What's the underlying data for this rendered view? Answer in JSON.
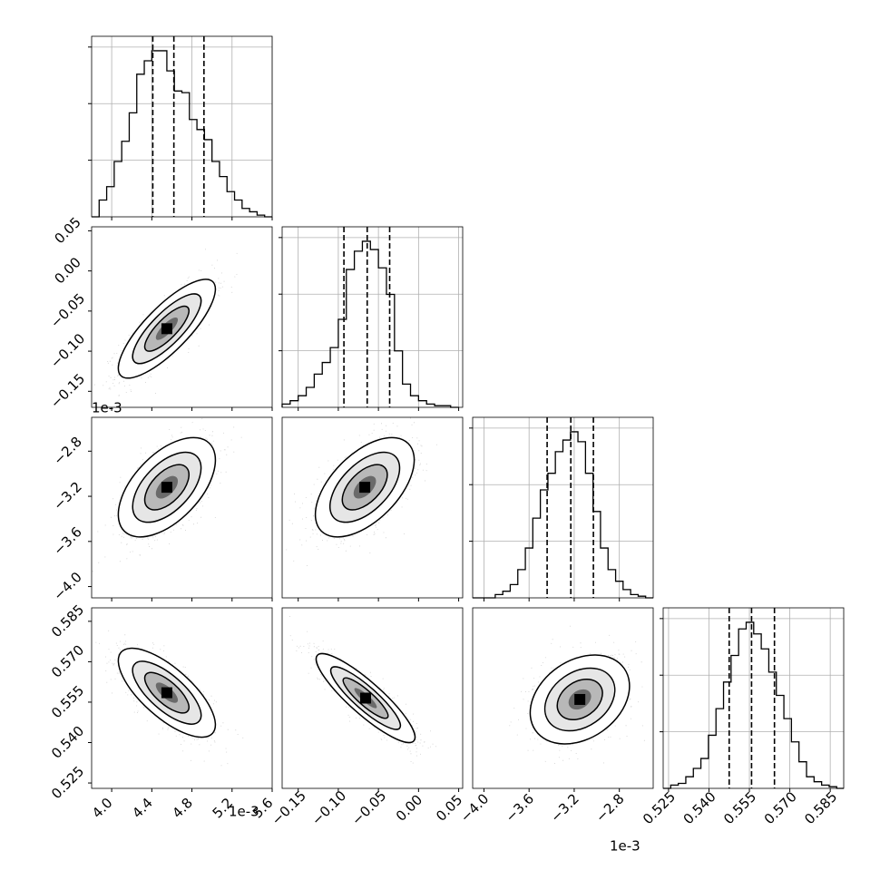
{
  "chart_data": {
    "type": "corner",
    "grid": true,
    "quantile_lines": "dashed",
    "parameters": [
      {
        "range": [
          3.8,
          5.6
        ],
        "ticks": [
          4.0,
          4.4,
          4.8,
          5.2,
          5.6
        ],
        "tick_labels": [
          "4.0",
          "4.4",
          "4.8",
          "5.2",
          "5.6"
        ],
        "offset_label": "1e-3",
        "quantiles": [
          4.41,
          4.62,
          4.92
        ],
        "hist_bins": [
          3.8,
          3.875,
          3.95,
          4.025,
          4.1,
          4.175,
          4.25,
          4.325,
          4.4,
          4.475,
          4.55,
          4.625,
          4.7,
          4.775,
          4.85,
          4.925,
          5.0,
          5.075,
          5.15,
          5.225,
          5.3,
          5.375,
          5.45,
          5.525,
          5.6
        ],
        "hist_counts": [
          0,
          0.1,
          0.18,
          0.33,
          0.45,
          0.62,
          0.85,
          0.93,
          0.99,
          0.99,
          0.87,
          0.75,
          0.74,
          0.58,
          0.52,
          0.46,
          0.33,
          0.24,
          0.15,
          0.1,
          0.05,
          0.03,
          0.01,
          0
        ]
      },
      {
        "range": [
          -0.17,
          0.055
        ],
        "ticks": [
          -0.15,
          -0.1,
          -0.05,
          0.0,
          0.05
        ],
        "tick_labels": [
          "−0.15",
          "−0.10",
          "−0.05",
          "0.00",
          "0.05"
        ],
        "offset_label": "1e-3",
        "quantiles": [
          -0.093,
          -0.064,
          -0.036
        ],
        "hist_bins": [
          -0.17,
          -0.16,
          -0.15,
          -0.14,
          -0.13,
          -0.12,
          -0.11,
          -0.1,
          -0.09,
          -0.08,
          -0.07,
          -0.06,
          -0.05,
          -0.04,
          -0.03,
          -0.02,
          -0.01,
          0.0,
          0.01,
          0.02,
          0.03,
          0.04,
          0.05
        ],
        "hist_counts": [
          0.02,
          0.04,
          0.07,
          0.12,
          0.2,
          0.27,
          0.36,
          0.53,
          0.83,
          0.94,
          1.0,
          0.95,
          0.84,
          0.68,
          0.34,
          0.14,
          0.07,
          0.04,
          0.02,
          0.01,
          0.01,
          0
        ]
      },
      {
        "range": [
          -4.1,
          -2.5
        ],
        "ticks": [
          -4.0,
          -3.6,
          -3.2,
          -2.8
        ],
        "tick_labels": [
          "−4.0",
          "−3.6",
          "−3.2",
          "−2.8"
        ],
        "offset_label": "1e-3",
        "quantiles": [
          -3.44,
          -3.23,
          -3.03
        ],
        "hist_bins": [
          -4.1,
          -4.033,
          -3.967,
          -3.9,
          -3.833,
          -3.767,
          -3.7,
          -3.633,
          -3.567,
          -3.5,
          -3.433,
          -3.367,
          -3.3,
          -3.233,
          -3.167,
          -3.1,
          -3.033,
          -2.967,
          -2.9,
          -2.833,
          -2.767,
          -2.7,
          -2.633,
          -2.567,
          -2.5
        ],
        "hist_counts": [
          0,
          0,
          0,
          0.02,
          0.04,
          0.08,
          0.17,
          0.3,
          0.48,
          0.65,
          0.75,
          0.88,
          0.95,
          1.0,
          0.94,
          0.75,
          0.52,
          0.3,
          0.17,
          0.1,
          0.05,
          0.02,
          0.01,
          0
        ]
      },
      {
        "range": [
          0.523,
          0.59
        ],
        "ticks": [
          0.525,
          0.54,
          0.555,
          0.57,
          0.585
        ],
        "tick_labels": [
          "0.525",
          "0.540",
          "0.555",
          "0.570",
          "0.585"
        ],
        "offset_label": "",
        "quantiles": [
          0.5475,
          0.5558,
          0.5643
        ],
        "hist_bins": [
          0.523,
          0.5258,
          0.5286,
          0.5314,
          0.5342,
          0.537,
          0.5398,
          0.5426,
          0.5454,
          0.5482,
          0.551,
          0.5538,
          0.5566,
          0.5594,
          0.5622,
          0.565,
          0.5678,
          0.5706,
          0.5734,
          0.5762,
          0.579,
          0.5818,
          0.5846,
          0.5874,
          0.59
        ],
        "hist_counts": [
          0,
          0.02,
          0.03,
          0.07,
          0.12,
          0.18,
          0.32,
          0.48,
          0.64,
          0.8,
          0.96,
          1.0,
          0.93,
          0.84,
          0.7,
          0.56,
          0.42,
          0.28,
          0.16,
          0.07,
          0.04,
          0.02,
          0.01,
          0
        ]
      }
    ],
    "pairs": [
      {
        "row": 1,
        "col": 0,
        "center": [
          4.55,
          -0.072
        ],
        "sigma": [
          0.22,
          0.028
        ],
        "rho": 0.8
      },
      {
        "row": 2,
        "col": 0,
        "center": [
          4.55,
          -3.12
        ],
        "sigma": [
          0.22,
          0.2
        ],
        "rho": 0.55
      },
      {
        "row": 2,
        "col": 1,
        "center": [
          -0.067,
          -3.12
        ],
        "sigma": [
          0.028,
          0.2
        ],
        "rho": 0.55
      },
      {
        "row": 3,
        "col": 0,
        "center": [
          4.55,
          0.5585
        ],
        "sigma": [
          0.22,
          0.0075
        ],
        "rho": -0.72
      },
      {
        "row": 3,
        "col": 1,
        "center": [
          -0.066,
          0.5565
        ],
        "sigma": [
          0.028,
          0.0075
        ],
        "rho": -0.88
      },
      {
        "row": 3,
        "col": 2,
        "center": [
          -3.15,
          0.556
        ],
        "sigma": [
          0.2,
          0.0075
        ],
        "rho": 0.3
      }
    ]
  }
}
